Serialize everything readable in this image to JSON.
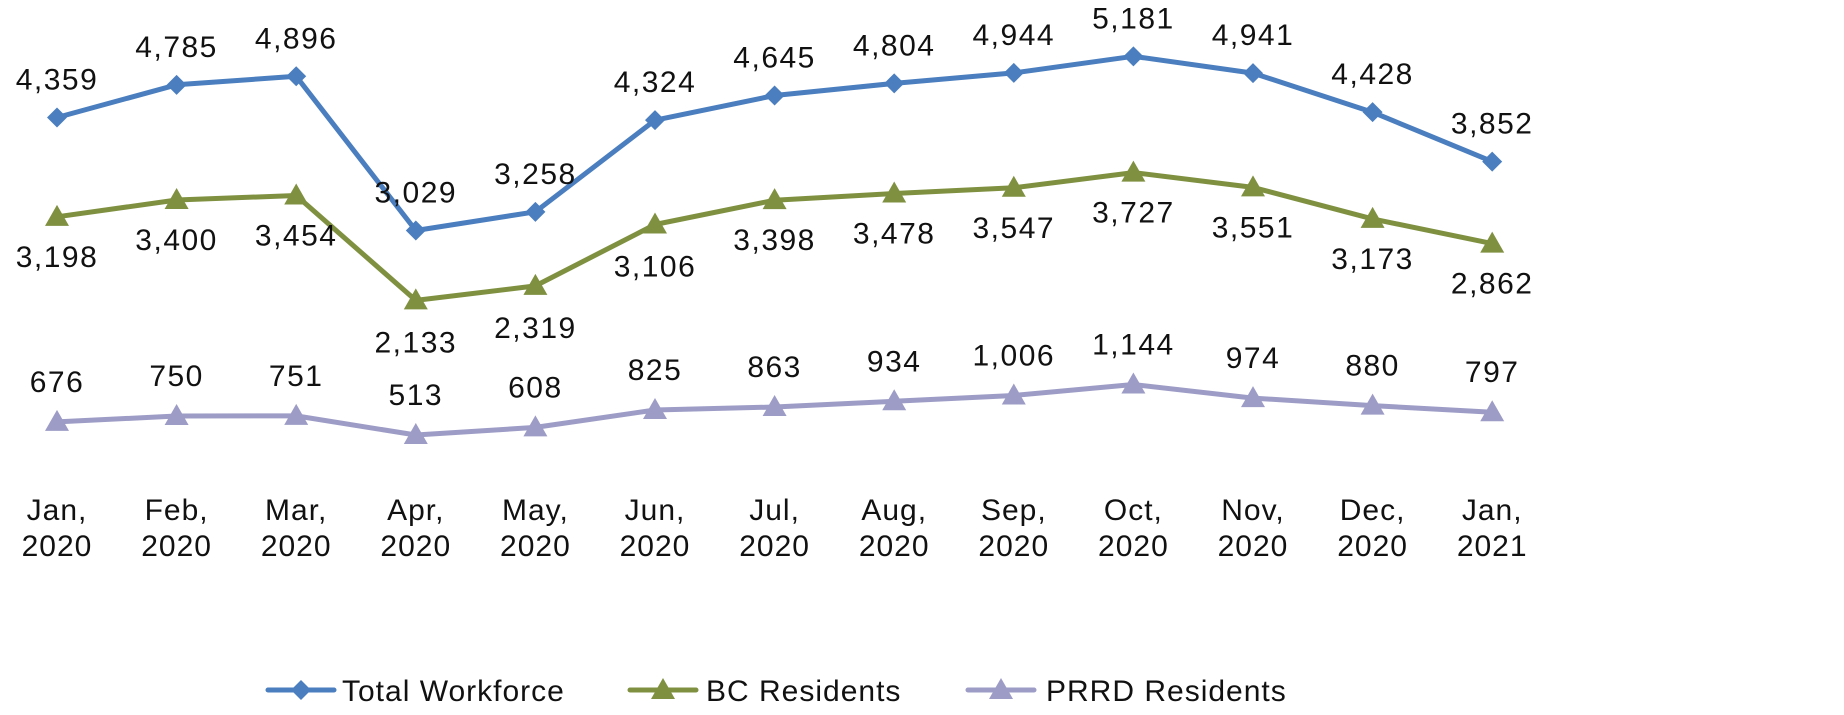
{
  "chart_data": {
    "type": "line",
    "categories": [
      "Jan, 2020",
      "Feb, 2020",
      "Mar, 2020",
      "Apr, 2020",
      "May, 2020",
      "Jun, 2020",
      "Jul, 2020",
      "Aug, 2020",
      "Sep, 2020",
      "Oct, 2020",
      "Nov, 2020",
      "Dec, 2020",
      "Jan, 2021"
    ],
    "series": [
      {
        "name": "Total Workforce",
        "color": "#4a7ebf",
        "marker": "diamond",
        "values": [
          4359,
          4785,
          4896,
          3029,
          3258,
          4324,
          4645,
          4804,
          4944,
          5181,
          4941,
          4428,
          3852
        ],
        "labels": [
          "4,359",
          "4,785",
          "4,896",
          "3,029",
          "3,258",
          "4,324",
          "4,645",
          "4,804",
          "4,944",
          "5,181",
          "4,941",
          "4,428",
          "3,852"
        ]
      },
      {
        "name": "BC Residents",
        "color": "#7f9140",
        "marker": "triangle",
        "values": [
          3198,
          3400,
          3454,
          2133,
          2319,
          3106,
          3398,
          3478,
          3547,
          3727,
          3551,
          3173,
          2862
        ],
        "labels": [
          "3,198",
          "3,400",
          "3,454",
          "2,133",
          "2,319",
          "3,106",
          "3,398",
          "3,478",
          "3,547",
          "3,727",
          "3,551",
          "3,173",
          "2,862"
        ]
      },
      {
        "name": "PRRD Residents",
        "color": "#9d9cc6",
        "marker": "triangle",
        "values": [
          676,
          750,
          751,
          513,
          608,
          825,
          863,
          934,
          1006,
          1144,
          974,
          880,
          797
        ],
        "labels": [
          "676",
          "750",
          "751",
          "513",
          "608",
          "825",
          "863",
          "934",
          "1,006",
          "1,144",
          "974",
          "880",
          "797"
        ]
      }
    ],
    "legend_position": "bottom",
    "grid": false,
    "axes_visible": false
  }
}
